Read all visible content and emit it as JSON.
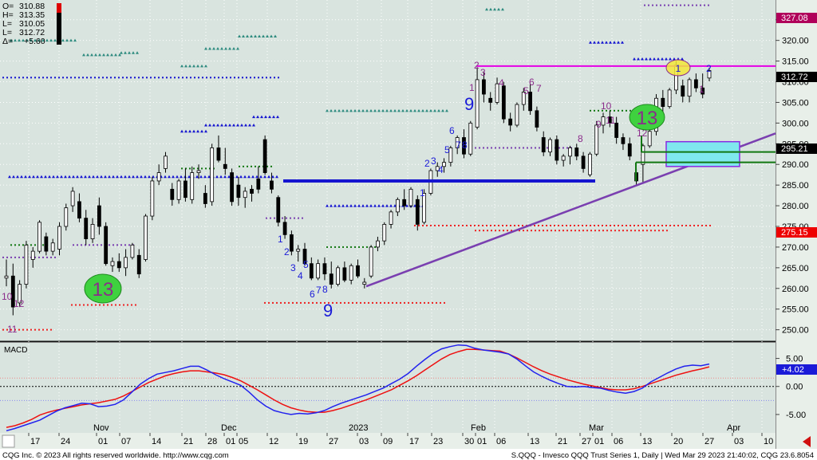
{
  "colors": {
    "panel_bg": "#d9e4df",
    "up_candle": "#ffffff",
    "down_candle": "#000000",
    "magenta": "#e600e6",
    "purple": "#7a3fb0",
    "blue": "#1515d0",
    "macd_line": "#2222ee",
    "signal_line": "#ee1111",
    "count_blue": "#1a1ad8",
    "count_purple": "#8b2c8b",
    "setup_green": "#3fd13f",
    "highlight_yellow": "#f2e83a",
    "zone_cyan": "#7fe8ee",
    "zone_border": "#8a2be2",
    "green_level": "#117711",
    "red_dots": "#ee2222",
    "teal_dots": "#2e8b7f"
  },
  "ohlc": {
    "open_label": "O=",
    "open": "310.88",
    "high_label": "H=",
    "high": "313.35",
    "low_label": "L=",
    "low": "310.05",
    "last_label": "L=",
    "last": "312.72",
    "change_label": "Δ=",
    "change": "+5.60"
  },
  "axis": {
    "price_ticks": [
      "325.00",
      "320.00",
      "315.00",
      "310.00",
      "305.00",
      "300.00",
      "295.00",
      "290.00",
      "285.00",
      "280.00",
      "275.00",
      "270.00",
      "265.00",
      "260.00",
      "255.00",
      "250.00"
    ],
    "macd_ticks": [
      "5.00",
      "0.00",
      "-5.00"
    ],
    "month_labels": [
      "Nov",
      "Dec",
      "2023",
      "Feb",
      "Mar",
      "Apr"
    ],
    "date_labels": [
      "17",
      "24",
      "01",
      "07",
      "14",
      "21",
      "28",
      "01",
      "05",
      "12",
      "19",
      "27",
      "03",
      "09",
      "17",
      "23",
      "30",
      "01",
      "06",
      "13",
      "21",
      "27",
      "01",
      "06",
      "13",
      "20",
      "27",
      "03",
      "10"
    ]
  },
  "price_badges": {
    "top": "327.08",
    "last": "312.72",
    "mid": "295.21",
    "low": "275.15"
  },
  "macd": {
    "title": "MACD",
    "value": "+4.02"
  },
  "annotations": {
    "counts_blue": [
      "1",
      "2",
      "3",
      "4",
      "5",
      "6",
      "7",
      "8",
      "9",
      "1",
      "2",
      "3",
      "4",
      "5",
      "6",
      "7",
      "8",
      "9"
    ],
    "counts_purple": [
      "10",
      "11",
      "12",
      "2",
      "3",
      "4",
      "5",
      "6",
      "7",
      "8",
      "9",
      "10",
      "11",
      "12",
      "1",
      "1",
      "2",
      "13"
    ],
    "setup_13_left": "13",
    "setup_13_right": "13"
  },
  "footer": {
    "copyright": "CQG Inc. © 2023 All rights reserved worldwide. http://www.cqg.com",
    "instrument": "S.QQQ - Invesco QQQ Trust Series 1, Daily | Wed Mar 29 2023 21:40:02, CQG 23.6.8054"
  },
  "chart_data": {
    "type": "candlestick",
    "interval": "daily",
    "price_range": [
      248,
      329
    ],
    "macd_range": [
      -8,
      7.5
    ],
    "candles": [
      {
        "o": 262.5,
        "h": 267.0,
        "l": 260.5,
        "c": 263.0
      },
      {
        "o": 263.0,
        "h": 266.0,
        "l": 253.5,
        "c": 255.5
      },
      {
        "o": 256.5,
        "h": 262.0,
        "l": 255.5,
        "c": 261.0
      },
      {
        "o": 261.0,
        "h": 271.5,
        "l": 260.0,
        "c": 270.5
      },
      {
        "o": 267.0,
        "h": 270.0,
        "l": 265.0,
        "c": 269.0
      },
      {
        "o": 269.0,
        "h": 276.5,
        "l": 268.5,
        "c": 276.0
      },
      {
        "o": 272.5,
        "h": 273.5,
        "l": 268.0,
        "c": 269.0
      },
      {
        "o": 269.0,
        "h": 272.0,
        "l": 268.0,
        "c": 271.0
      },
      {
        "o": 269.5,
        "h": 276.0,
        "l": 268.0,
        "c": 275.0
      },
      {
        "o": 275.0,
        "h": 280.5,
        "l": 274.0,
        "c": 279.5
      },
      {
        "o": 280.0,
        "h": 284.5,
        "l": 278.5,
        "c": 283.5
      },
      {
        "o": 281.0,
        "h": 283.0,
        "l": 276.0,
        "c": 277.0
      },
      {
        "o": 277.0,
        "h": 279.0,
        "l": 270.5,
        "c": 272.0
      },
      {
        "o": 272.0,
        "h": 277.0,
        "l": 271.0,
        "c": 275.5
      },
      {
        "o": 280.0,
        "h": 282.0,
        "l": 273.0,
        "c": 275.0
      },
      {
        "o": 275.0,
        "h": 276.0,
        "l": 265.5,
        "c": 266.0
      },
      {
        "o": 265.5,
        "h": 267.5,
        "l": 264.0,
        "c": 266.5
      },
      {
        "o": 266.5,
        "h": 268.5,
        "l": 264.0,
        "c": 265.0
      },
      {
        "o": 265.0,
        "h": 269.5,
        "l": 263.0,
        "c": 267.5
      },
      {
        "o": 267.5,
        "h": 271.0,
        "l": 267.0,
        "c": 270.5
      },
      {
        "o": 268.0,
        "h": 269.5,
        "l": 262.5,
        "c": 263.5
      },
      {
        "o": 267.0,
        "h": 278.0,
        "l": 266.5,
        "c": 277.5
      },
      {
        "o": 277.5,
        "h": 287.0,
        "l": 276.5,
        "c": 286.0
      },
      {
        "o": 286.0,
        "h": 290.0,
        "l": 285.0,
        "c": 288.0
      },
      {
        "o": 289.0,
        "h": 293.0,
        "l": 288.0,
        "c": 292.0
      },
      {
        "o": 284.0,
        "h": 285.5,
        "l": 280.0,
        "c": 281.5
      },
      {
        "o": 281.5,
        "h": 286.5,
        "l": 280.5,
        "c": 286.0
      },
      {
        "o": 286.0,
        "h": 289.0,
        "l": 281.0,
        "c": 282.0
      },
      {
        "o": 281.5,
        "h": 289.5,
        "l": 280.5,
        "c": 288.0
      },
      {
        "o": 288.0,
        "h": 290.0,
        "l": 286.5,
        "c": 288.5
      },
      {
        "o": 283.0,
        "h": 285.0,
        "l": 279.5,
        "c": 280.5
      },
      {
        "o": 281.0,
        "h": 295.0,
        "l": 280.0,
        "c": 294.0
      },
      {
        "o": 294.0,
        "h": 297.0,
        "l": 290.5,
        "c": 291.0
      },
      {
        "o": 290.0,
        "h": 294.0,
        "l": 287.5,
        "c": 289.0
      },
      {
        "o": 288.0,
        "h": 289.0,
        "l": 280.0,
        "c": 281.0
      },
      {
        "o": 285.0,
        "h": 287.0,
        "l": 280.0,
        "c": 282.0
      },
      {
        "o": 282.0,
        "h": 284.5,
        "l": 279.5,
        "c": 283.5
      },
      {
        "o": 284.0,
        "h": 285.0,
        "l": 281.0,
        "c": 283.0
      },
      {
        "o": 286.5,
        "h": 289.5,
        "l": 283.0,
        "c": 284.0
      },
      {
        "o": 296.0,
        "h": 297.0,
        "l": 287.5,
        "c": 288.0
      },
      {
        "o": 286.0,
        "h": 288.0,
        "l": 283.0,
        "c": 284.0
      },
      {
        "o": 282.0,
        "h": 282.5,
        "l": 275.0,
        "c": 276.0
      },
      {
        "o": 276.0,
        "h": 277.5,
        "l": 272.0,
        "c": 273.0
      },
      {
        "o": 273.0,
        "h": 274.0,
        "l": 268.0,
        "c": 269.0
      },
      {
        "o": 269.0,
        "h": 270.5,
        "l": 266.5,
        "c": 269.5
      },
      {
        "o": 269.5,
        "h": 271.0,
        "l": 265.5,
        "c": 266.0
      },
      {
        "o": 266.0,
        "h": 267.5,
        "l": 262.0,
        "c": 262.5
      },
      {
        "o": 262.5,
        "h": 267.0,
        "l": 262.0,
        "c": 266.0
      },
      {
        "o": 266.0,
        "h": 267.5,
        "l": 262.0,
        "c": 263.5
      },
      {
        "o": 263.5,
        "h": 266.5,
        "l": 260.0,
        "c": 261.0
      },
      {
        "o": 261.0,
        "h": 265.5,
        "l": 260.5,
        "c": 265.0
      },
      {
        "o": 265.0,
        "h": 266.5,
        "l": 261.5,
        "c": 262.0
      },
      {
        "o": 262.0,
        "h": 266.0,
        "l": 261.0,
        "c": 265.5
      },
      {
        "o": 265.5,
        "h": 267.0,
        "l": 262.5,
        "c": 263.0
      },
      {
        "o": 261.0,
        "h": 262.5,
        "l": 260.0,
        "c": 261.5
      },
      {
        "o": 263.0,
        "h": 270.5,
        "l": 262.5,
        "c": 270.0
      },
      {
        "o": 270.0,
        "h": 272.5,
        "l": 269.0,
        "c": 271.5
      },
      {
        "o": 271.5,
        "h": 276.0,
        "l": 270.5,
        "c": 275.5
      },
      {
        "o": 275.5,
        "h": 279.0,
        "l": 274.5,
        "c": 278.5
      },
      {
        "o": 278.5,
        "h": 282.0,
        "l": 277.5,
        "c": 281.5
      },
      {
        "o": 281.5,
        "h": 284.0,
        "l": 279.0,
        "c": 280.0
      },
      {
        "o": 280.0,
        "h": 284.5,
        "l": 279.5,
        "c": 284.0
      },
      {
        "o": 281.5,
        "h": 282.5,
        "l": 274.0,
        "c": 275.5
      },
      {
        "o": 276.0,
        "h": 284.0,
        "l": 275.5,
        "c": 283.0
      },
      {
        "o": 283.0,
        "h": 289.0,
        "l": 282.5,
        "c": 288.5
      },
      {
        "o": 288.5,
        "h": 290.5,
        "l": 287.0,
        "c": 289.5
      },
      {
        "o": 289.5,
        "h": 291.5,
        "l": 288.0,
        "c": 290.5
      },
      {
        "o": 290.5,
        "h": 294.5,
        "l": 289.5,
        "c": 294.0
      },
      {
        "o": 294.0,
        "h": 297.0,
        "l": 292.5,
        "c": 296.5
      },
      {
        "o": 296.5,
        "h": 298.5,
        "l": 291.5,
        "c": 292.5
      },
      {
        "o": 292.5,
        "h": 300.5,
        "l": 292.0,
        "c": 300.0
      },
      {
        "o": 299.0,
        "h": 313.5,
        "l": 298.5,
        "c": 310.5
      },
      {
        "o": 310.5,
        "h": 312.5,
        "l": 305.0,
        "c": 307.0
      },
      {
        "o": 306.0,
        "h": 307.5,
        "l": 303.0,
        "c": 305.0
      },
      {
        "o": 305.0,
        "h": 311.0,
        "l": 304.5,
        "c": 309.5
      },
      {
        "o": 309.0,
        "h": 310.0,
        "l": 300.0,
        "c": 301.0
      },
      {
        "o": 301.0,
        "h": 302.5,
        "l": 298.0,
        "c": 299.5
      },
      {
        "o": 299.5,
        "h": 305.0,
        "l": 299.0,
        "c": 304.5
      },
      {
        "o": 304.5,
        "h": 308.5,
        "l": 303.0,
        "c": 307.5
      },
      {
        "o": 307.5,
        "h": 309.5,
        "l": 302.0,
        "c": 303.0
      },
      {
        "o": 303.0,
        "h": 304.0,
        "l": 298.0,
        "c": 299.0
      },
      {
        "o": 296.5,
        "h": 298.0,
        "l": 292.0,
        "c": 293.0
      },
      {
        "o": 293.0,
        "h": 296.5,
        "l": 292.0,
        "c": 296.0
      },
      {
        "o": 296.0,
        "h": 297.0,
        "l": 290.0,
        "c": 291.0
      },
      {
        "o": 291.0,
        "h": 292.5,
        "l": 289.5,
        "c": 292.0
      },
      {
        "o": 292.0,
        "h": 294.5,
        "l": 290.0,
        "c": 294.0
      },
      {
        "o": 294.0,
        "h": 295.0,
        "l": 291.0,
        "c": 292.0
      },
      {
        "o": 292.0,
        "h": 293.0,
        "l": 288.0,
        "c": 289.0
      },
      {
        "o": 287.5,
        "h": 293.0,
        "l": 287.0,
        "c": 292.5
      },
      {
        "o": 292.5,
        "h": 300.5,
        "l": 292.0,
        "c": 299.5
      },
      {
        "o": 299.5,
        "h": 302.5,
        "l": 297.5,
        "c": 301.5
      },
      {
        "o": 301.5,
        "h": 303.0,
        "l": 299.0,
        "c": 300.0
      },
      {
        "o": 300.0,
        "h": 301.5,
        "l": 295.0,
        "c": 296.5
      },
      {
        "o": 296.5,
        "h": 297.5,
        "l": 293.5,
        "c": 295.0
      },
      {
        "o": 295.0,
        "h": 296.5,
        "l": 291.0,
        "c": 292.0
      },
      {
        "o": 288.0,
        "h": 289.0,
        "l": 285.0,
        "c": 286.0
      },
      {
        "o": 290.0,
        "h": 295.0,
        "l": 285.5,
        "c": 294.5
      },
      {
        "o": 294.5,
        "h": 300.0,
        "l": 294.0,
        "c": 298.0
      },
      {
        "o": 298.0,
        "h": 307.0,
        "l": 297.0,
        "c": 306.0
      },
      {
        "o": 306.0,
        "h": 308.0,
        "l": 302.5,
        "c": 304.0
      },
      {
        "o": 304.0,
        "h": 308.5,
        "l": 303.5,
        "c": 308.0
      },
      {
        "o": 308.0,
        "h": 315.0,
        "l": 307.0,
        "c": 314.0
      },
      {
        "o": 309.0,
        "h": 310.5,
        "l": 305.0,
        "c": 306.5
      },
      {
        "o": 306.5,
        "h": 311.0,
        "l": 305.0,
        "c": 310.5
      },
      {
        "o": 310.5,
        "h": 312.0,
        "l": 307.5,
        "c": 308.5
      },
      {
        "o": 308.5,
        "h": 312.0,
        "l": 306.0,
        "c": 307.0
      },
      {
        "o": 310.9,
        "h": 313.4,
        "l": 310.1,
        "c": 312.7
      }
    ],
    "macd_line": [
      -7.9,
      -7.5,
      -7.0,
      -6.5,
      -6.0,
      -5.2,
      -4.4,
      -3.8,
      -3.4,
      -3.0,
      -3.1,
      -3.6,
      -3.5,
      -3.2,
      -2.4,
      -1.0,
      0.4,
      1.4,
      2.2,
      2.5,
      2.8,
      3.2,
      3.6,
      3.6,
      2.9,
      2.1,
      1.4,
      0.8,
      0.2,
      -1.0,
      -2.4,
      -3.5,
      -4.3,
      -4.7,
      -5.0,
      -4.8,
      -4.9,
      -4.7,
      -4.3,
      -3.6,
      -3.0,
      -2.5,
      -2.0,
      -1.5,
      -0.9,
      -0.3,
      0.5,
      1.3,
      2.3,
      3.6,
      4.8,
      5.9,
      6.7,
      7.1,
      7.4,
      7.3,
      6.8,
      6.5,
      6.3,
      6.1,
      5.8,
      4.9,
      3.7,
      2.6,
      1.8,
      1.1,
      0.5,
      0.0,
      -0.1,
      0.0,
      -0.2,
      -0.3,
      -0.7,
      -1.0,
      -1.2,
      -0.9,
      -0.3,
      0.8,
      1.6,
      2.4,
      3.1,
      3.6,
      3.8,
      3.7,
      4.0
    ],
    "signal_line": [
      -7.3,
      -7.0,
      -6.5,
      -5.9,
      -5.1,
      -4.6,
      -4.2,
      -3.9,
      -3.6,
      -3.3,
      -3.1,
      -2.9,
      -2.6,
      -2.3,
      -1.7,
      -0.9,
      -0.1,
      0.7,
      1.3,
      1.9,
      2.3,
      2.6,
      2.8,
      2.8,
      2.6,
      2.4,
      2.1,
      1.6,
      1.0,
      0.2,
      -0.6,
      -1.5,
      -2.4,
      -3.2,
      -3.8,
      -4.2,
      -4.5,
      -4.6,
      -4.6,
      -4.3,
      -3.9,
      -3.4,
      -2.9,
      -2.4,
      -1.8,
      -1.2,
      -0.6,
      0.2,
      1.0,
      1.9,
      2.9,
      3.9,
      4.9,
      5.7,
      6.2,
      6.6,
      6.6,
      6.5,
      6.4,
      6.3,
      5.8,
      5.1,
      4.3,
      3.5,
      2.8,
      2.2,
      1.7,
      1.2,
      0.8,
      0.4,
      0.1,
      -0.2,
      -0.5,
      -0.6,
      -0.6,
      -0.4,
      0.0,
      0.5,
      1.0,
      1.5,
      2.0,
      2.4,
      2.8,
      3.1,
      3.5
    ]
  }
}
